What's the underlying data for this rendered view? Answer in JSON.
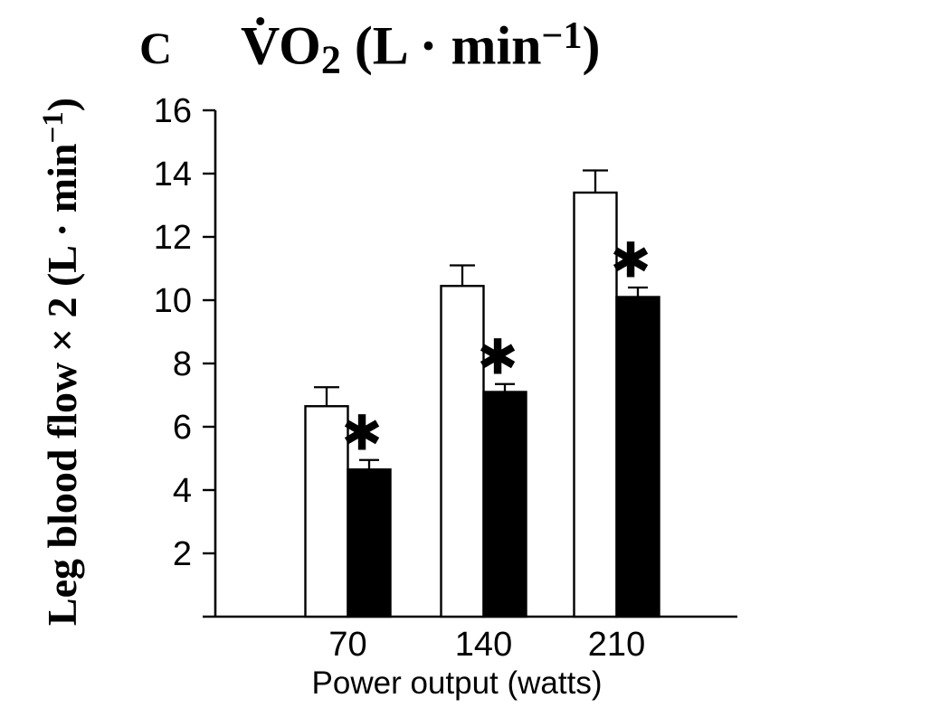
{
  "panel_label": "C",
  "title": {
    "pre": "V̇O",
    "sub": "2",
    "mid": " (L · min",
    "sup": "−1",
    "post": ")"
  },
  "chart_data": {
    "type": "bar",
    "panel": "C",
    "title": "V̇O₂ (L·min⁻¹)",
    "categories": [
      "70",
      "140",
      "210"
    ],
    "xlabel": "Power output (watts)",
    "ylabel": "Leg blood flow × 2 (L·min⁻¹)",
    "ylabel_parts": {
      "main": "Leg blood flow × 2 (L · min",
      "sup": "−1",
      "post": ")"
    },
    "ylim": [
      0,
      16
    ],
    "yticks": [
      2,
      4,
      6,
      8,
      10,
      12,
      14,
      16
    ],
    "grid": false,
    "legend": "none",
    "bar_colors": {
      "open": "#ffffff",
      "filled": "#000000",
      "outline": "#000000"
    },
    "series": [
      {
        "name": "open-bars",
        "style": "open",
        "values": [
          6.65,
          10.45,
          13.4
        ],
        "errors_up": [
          0.6,
          0.65,
          0.7
        ],
        "significant": [
          false,
          false,
          false
        ]
      },
      {
        "name": "filled-bars",
        "style": "filled",
        "values": [
          4.65,
          7.1,
          10.1
        ],
        "errors_up": [
          0.3,
          0.25,
          0.3
        ],
        "significant": [
          true,
          true,
          true
        ]
      }
    ],
    "significance_marker": "✱"
  }
}
